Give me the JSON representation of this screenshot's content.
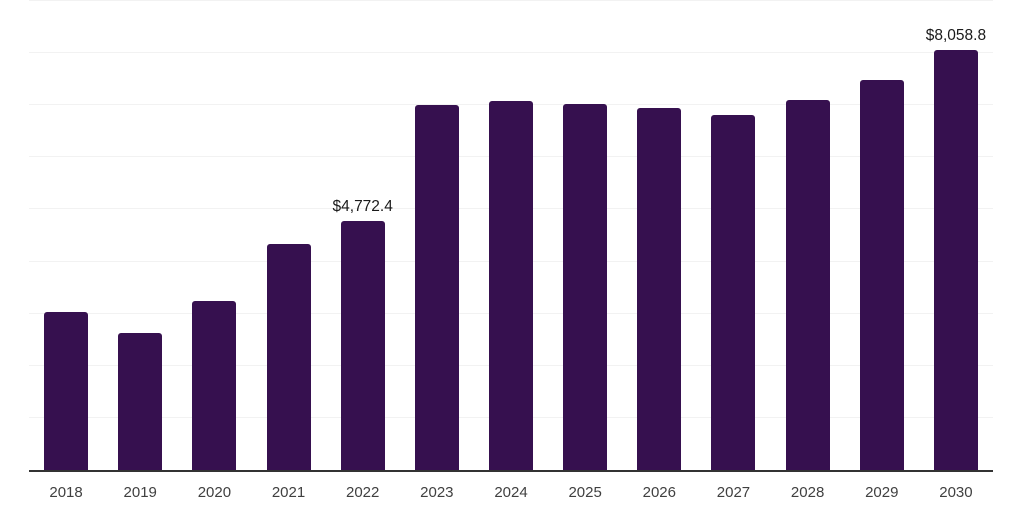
{
  "chart_data": {
    "type": "bar",
    "title": "",
    "xlabel": "",
    "ylabel": "",
    "categories": [
      "2018",
      "2019",
      "2020",
      "2021",
      "2022",
      "2023",
      "2024",
      "2025",
      "2026",
      "2027",
      "2028",
      "2029",
      "2030"
    ],
    "values": [
      3025,
      2635,
      3250,
      4345,
      4772.4,
      7010,
      7080,
      7030,
      6950,
      6815,
      7100,
      7485,
      8058.8
    ],
    "data_labels": [
      {
        "category": "2022",
        "text": "$4,772.4"
      },
      {
        "category": "2030",
        "text": "$8,058.8"
      }
    ],
    "ylim": [
      0,
      9000
    ],
    "gridline_step": 1000,
    "grid": true,
    "legend": "none",
    "y_tick_labels_visible": false,
    "colors": {
      "bar": "#36104F",
      "axis_line": "#333333",
      "gridline": "#F2F2F2",
      "tick_label": "#404040",
      "data_label": "#1A1A1A",
      "background": "#FFFFFF"
    }
  }
}
